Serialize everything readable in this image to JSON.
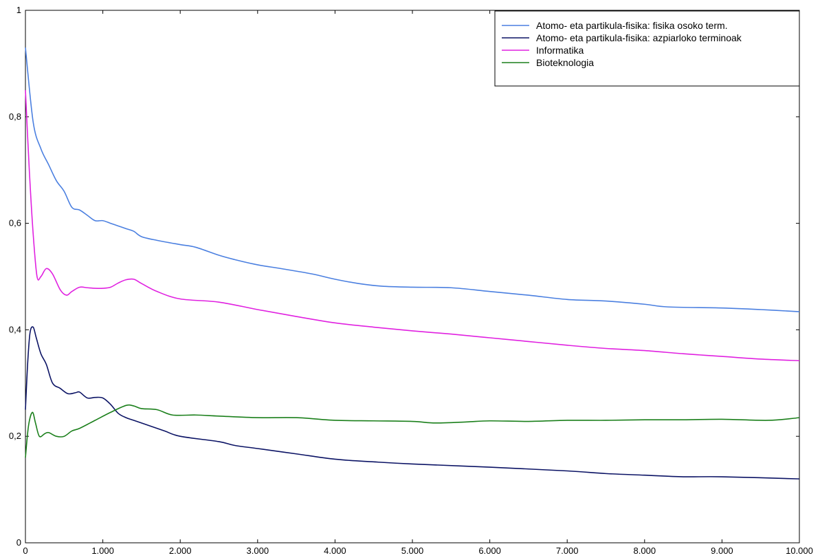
{
  "chart_data": {
    "type": "line",
    "title": "",
    "xlabel": "",
    "ylabel": "",
    "xlim": [
      0,
      10000
    ],
    "ylim": [
      0,
      1
    ],
    "x_ticks": [
      0,
      1000,
      2000,
      3000,
      4000,
      5000,
      6000,
      7000,
      8000,
      9000,
      10000
    ],
    "x_tick_labels": [
      "0",
      "1.000",
      "2.000",
      "3.000",
      "4.000",
      "5.000",
      "6.000",
      "7.000",
      "8.000",
      "9.000",
      "10.000"
    ],
    "y_ticks": [
      0,
      0.2,
      0.4,
      0.6,
      0.8,
      1
    ],
    "y_tick_labels": [
      "0",
      "0,2",
      "0,4",
      "0,6",
      "0,8",
      "1"
    ],
    "grid": false,
    "legend": "top-right",
    "series": [
      {
        "name": "Atomo- eta partikula-fisika: fisika osoko term.",
        "color": "#4a7fe0",
        "points": [
          [
            0,
            0.93
          ],
          [
            100,
            0.79
          ],
          [
            200,
            0.74
          ],
          [
            300,
            0.71
          ],
          [
            400,
            0.68
          ],
          [
            500,
            0.66
          ],
          [
            600,
            0.63
          ],
          [
            700,
            0.625
          ],
          [
            800,
            0.615
          ],
          [
            900,
            0.605
          ],
          [
            1000,
            0.605
          ],
          [
            1100,
            0.6
          ],
          [
            1200,
            0.595
          ],
          [
            1300,
            0.59
          ],
          [
            1400,
            0.585
          ],
          [
            1500,
            0.575
          ],
          [
            1700,
            0.568
          ],
          [
            2000,
            0.56
          ],
          [
            2200,
            0.555
          ],
          [
            2500,
            0.54
          ],
          [
            2700,
            0.532
          ],
          [
            3000,
            0.522
          ],
          [
            3300,
            0.515
          ],
          [
            3700,
            0.505
          ],
          [
            4000,
            0.495
          ],
          [
            4300,
            0.487
          ],
          [
            4600,
            0.482
          ],
          [
            5000,
            0.48
          ],
          [
            5500,
            0.479
          ],
          [
            6000,
            0.472
          ],
          [
            6500,
            0.465
          ],
          [
            7000,
            0.457
          ],
          [
            7500,
            0.454
          ],
          [
            8000,
            0.448
          ],
          [
            8300,
            0.443
          ],
          [
            9000,
            0.441
          ],
          [
            9500,
            0.438
          ],
          [
            10000,
            0.434
          ]
        ]
      },
      {
        "name": "Atomo- eta partikula-fisika: azpiarloko terminoak",
        "color": "#0a1264",
        "points": [
          [
            0,
            0.25
          ],
          [
            30,
            0.34
          ],
          [
            60,
            0.395
          ],
          [
            100,
            0.405
          ],
          [
            140,
            0.385
          ],
          [
            200,
            0.355
          ],
          [
            270,
            0.335
          ],
          [
            350,
            0.3
          ],
          [
            450,
            0.29
          ],
          [
            550,
            0.28
          ],
          [
            650,
            0.282
          ],
          [
            700,
            0.283
          ],
          [
            800,
            0.272
          ],
          [
            900,
            0.273
          ],
          [
            1000,
            0.272
          ],
          [
            1100,
            0.26
          ],
          [
            1200,
            0.243
          ],
          [
            1300,
            0.235
          ],
          [
            1400,
            0.23
          ],
          [
            1600,
            0.22
          ],
          [
            1800,
            0.21
          ],
          [
            2000,
            0.2
          ],
          [
            2500,
            0.19
          ],
          [
            2700,
            0.183
          ],
          [
            3000,
            0.177
          ],
          [
            3500,
            0.167
          ],
          [
            4000,
            0.157
          ],
          [
            4500,
            0.152
          ],
          [
            5000,
            0.148
          ],
          [
            6000,
            0.142
          ],
          [
            7000,
            0.135
          ],
          [
            7500,
            0.13
          ],
          [
            8000,
            0.127
          ],
          [
            8500,
            0.124
          ],
          [
            9000,
            0.124
          ],
          [
            10000,
            0.12
          ]
        ]
      },
      {
        "name": "Informatika",
        "color": "#e020e0",
        "points": [
          [
            0,
            0.85
          ],
          [
            50,
            0.7
          ],
          [
            100,
            0.58
          ],
          [
            150,
            0.5
          ],
          [
            200,
            0.5
          ],
          [
            270,
            0.515
          ],
          [
            350,
            0.505
          ],
          [
            450,
            0.475
          ],
          [
            530,
            0.465
          ],
          [
            600,
            0.472
          ],
          [
            700,
            0.48
          ],
          [
            800,
            0.479
          ],
          [
            900,
            0.478
          ],
          [
            1000,
            0.478
          ],
          [
            1100,
            0.48
          ],
          [
            1200,
            0.488
          ],
          [
            1300,
            0.494
          ],
          [
            1400,
            0.495
          ],
          [
            1500,
            0.487
          ],
          [
            1700,
            0.472
          ],
          [
            2000,
            0.458
          ],
          [
            2500,
            0.452
          ],
          [
            3000,
            0.438
          ],
          [
            3500,
            0.425
          ],
          [
            4000,
            0.413
          ],
          [
            4500,
            0.405
          ],
          [
            5000,
            0.398
          ],
          [
            5500,
            0.392
          ],
          [
            6000,
            0.385
          ],
          [
            6500,
            0.378
          ],
          [
            7000,
            0.371
          ],
          [
            7500,
            0.365
          ],
          [
            8000,
            0.361
          ],
          [
            8500,
            0.355
          ],
          [
            9000,
            0.35
          ],
          [
            9500,
            0.345
          ],
          [
            10000,
            0.342
          ]
        ]
      },
      {
        "name": "Bioteknologia",
        "color": "#1a7f1a",
        "points": [
          [
            0,
            0.16
          ],
          [
            40,
            0.22
          ],
          [
            90,
            0.245
          ],
          [
            130,
            0.225
          ],
          [
            180,
            0.2
          ],
          [
            250,
            0.205
          ],
          [
            300,
            0.207
          ],
          [
            400,
            0.2
          ],
          [
            500,
            0.2
          ],
          [
            600,
            0.21
          ],
          [
            700,
            0.215
          ],
          [
            900,
            0.23
          ],
          [
            1100,
            0.245
          ],
          [
            1300,
            0.258
          ],
          [
            1400,
            0.257
          ],
          [
            1500,
            0.252
          ],
          [
            1700,
            0.25
          ],
          [
            1900,
            0.24
          ],
          [
            2200,
            0.24
          ],
          [
            2500,
            0.238
          ],
          [
            3000,
            0.235
          ],
          [
            3500,
            0.235
          ],
          [
            4000,
            0.23
          ],
          [
            4500,
            0.229
          ],
          [
            5000,
            0.228
          ],
          [
            5300,
            0.225
          ],
          [
            5700,
            0.227
          ],
          [
            6000,
            0.229
          ],
          [
            6500,
            0.228
          ],
          [
            7000,
            0.23
          ],
          [
            7500,
            0.23
          ],
          [
            8000,
            0.231
          ],
          [
            8500,
            0.231
          ],
          [
            9000,
            0.232
          ],
          [
            9600,
            0.23
          ],
          [
            10000,
            0.235
          ]
        ]
      }
    ]
  }
}
